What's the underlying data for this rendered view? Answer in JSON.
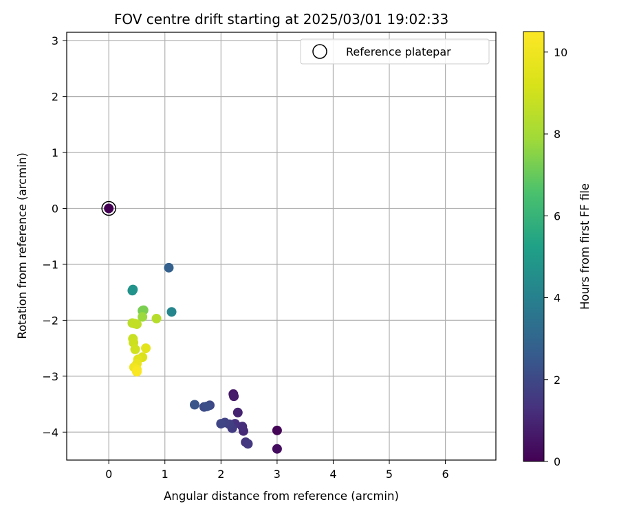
{
  "chart_data": {
    "type": "scatter",
    "title": "FOV centre drift starting at 2025/03/01 19:02:33",
    "xlabel": "Angular distance from reference (arcmin)",
    "ylabel": "Rotation from reference (arcmin)",
    "xlim": [
      -0.75,
      6.9
    ],
    "ylim": [
      -4.5,
      3.15
    ],
    "xticks": [
      0,
      1,
      2,
      3,
      4,
      5,
      6
    ],
    "yticks": [
      -4,
      -3,
      -2,
      -1,
      0,
      1,
      2,
      3
    ],
    "grid": true,
    "legend": {
      "entries": [
        "Reference platepar"
      ],
      "placement": "top-right"
    },
    "colorbar": {
      "label": "Hours from first FF file",
      "colormap": "viridis",
      "range": [
        0,
        10.5
      ],
      "ticks": [
        0,
        2,
        4,
        6,
        8,
        10
      ]
    },
    "reference_point": {
      "x": 0,
      "y": 0
    },
    "points": [
      {
        "x": 0.0,
        "y": 0.0,
        "c": 0.0
      },
      {
        "x": 3.0,
        "y": -3.97,
        "c": 0.1
      },
      {
        "x": 3.0,
        "y": -4.3,
        "c": 0.3
      },
      {
        "x": 2.22,
        "y": -3.32,
        "c": 0.6
      },
      {
        "x": 2.23,
        "y": -3.36,
        "c": 0.7
      },
      {
        "x": 2.3,
        "y": -3.65,
        "c": 0.9
      },
      {
        "x": 2.4,
        "y": -3.98,
        "c": 1.1
      },
      {
        "x": 2.38,
        "y": -3.9,
        "c": 1.2
      },
      {
        "x": 2.25,
        "y": -3.85,
        "c": 1.3
      },
      {
        "x": 2.44,
        "y": -4.18,
        "c": 1.4
      },
      {
        "x": 2.48,
        "y": -4.21,
        "c": 1.5
      },
      {
        "x": 2.2,
        "y": -3.93,
        "c": 1.6
      },
      {
        "x": 2.15,
        "y": -3.86,
        "c": 1.7
      },
      {
        "x": 2.07,
        "y": -3.83,
        "c": 1.8
      },
      {
        "x": 2.0,
        "y": -3.85,
        "c": 1.9
      },
      {
        "x": 1.8,
        "y": -3.52,
        "c": 2.0
      },
      {
        "x": 1.7,
        "y": -3.55,
        "c": 2.1
      },
      {
        "x": 1.75,
        "y": -3.54,
        "c": 2.2
      },
      {
        "x": 1.53,
        "y": -3.51,
        "c": 2.4
      },
      {
        "x": 1.07,
        "y": -1.06,
        "c": 2.8
      },
      {
        "x": 1.12,
        "y": -1.85,
        "c": 4.2
      },
      {
        "x": 0.42,
        "y": -1.47,
        "c": 4.6
      },
      {
        "x": 0.43,
        "y": -1.45,
        "c": 4.7
      },
      {
        "x": 0.6,
        "y": -1.83,
        "c": 7.2
      },
      {
        "x": 0.62,
        "y": -1.82,
        "c": 7.3
      },
      {
        "x": 0.6,
        "y": -1.94,
        "c": 7.8
      },
      {
        "x": 0.85,
        "y": -1.97,
        "c": 8.4
      },
      {
        "x": 0.42,
        "y": -2.05,
        "c": 8.5
      },
      {
        "x": 0.5,
        "y": -2.07,
        "c": 8.6
      },
      {
        "x": 0.46,
        "y": -2.06,
        "c": 8.7
      },
      {
        "x": 0.43,
        "y": -2.33,
        "c": 8.8
      },
      {
        "x": 0.44,
        "y": -2.4,
        "c": 8.9
      },
      {
        "x": 0.47,
        "y": -2.52,
        "c": 9.0
      },
      {
        "x": 0.6,
        "y": -2.66,
        "c": 9.3
      },
      {
        "x": 0.52,
        "y": -2.7,
        "c": 9.5
      },
      {
        "x": 0.66,
        "y": -2.5,
        "c": 9.6
      },
      {
        "x": 0.5,
        "y": -2.78,
        "c": 9.8
      },
      {
        "x": 0.45,
        "y": -2.84,
        "c": 10.0
      },
      {
        "x": 0.5,
        "y": -2.88,
        "c": 10.2
      },
      {
        "x": 0.5,
        "y": -2.92,
        "c": 10.4
      }
    ]
  }
}
